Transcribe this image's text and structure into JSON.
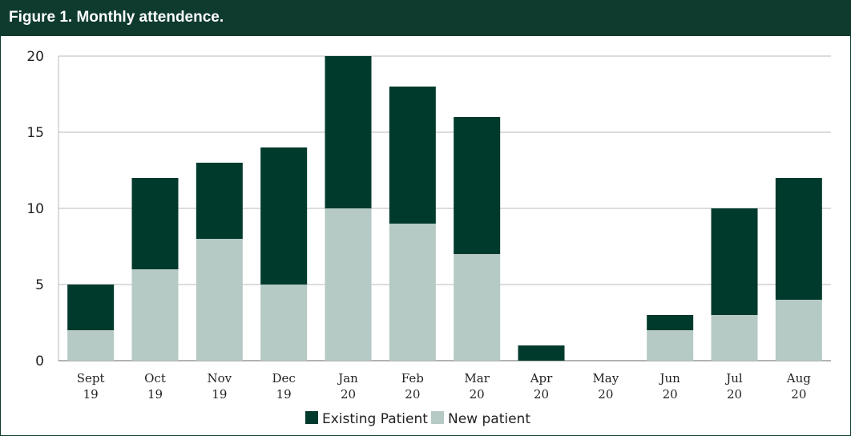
{
  "figure": {
    "title": "Figure 1. Monthly attendence."
  },
  "colors": {
    "existing": "#003a2c",
    "new": "#b5c9c5",
    "grid": "#b9b9b9",
    "header": "#0f3b2f"
  },
  "chart_data": {
    "type": "bar",
    "stacked": true,
    "title": "Figure 1. Monthly attendence.",
    "categories": [
      [
        "Sept",
        "19"
      ],
      [
        "Oct",
        "19"
      ],
      [
        "Nov",
        "19"
      ],
      [
        "Dec",
        "19"
      ],
      [
        "Jan",
        "20"
      ],
      [
        "Feb",
        "20"
      ],
      [
        "Mar",
        "20"
      ],
      [
        "Apr",
        "20"
      ],
      [
        "May",
        "20"
      ],
      [
        "Jun",
        "20"
      ],
      [
        "Jul",
        "20"
      ],
      [
        "Aug",
        "20"
      ]
    ],
    "series": [
      {
        "name": "New patient",
        "values": [
          2,
          6,
          8,
          5,
          10,
          9,
          7,
          0,
          0,
          2,
          3,
          4
        ]
      },
      {
        "name": "Existing Patient",
        "values": [
          3,
          6,
          5,
          9,
          10,
          9,
          9,
          1,
          0,
          1,
          7,
          8
        ]
      }
    ],
    "ylim": [
      0,
      20
    ],
    "yticks": [
      0,
      5,
      10,
      15,
      20
    ],
    "grid": true,
    "legend": {
      "placement": "bottom",
      "entries": [
        "Existing Patient",
        "New patient"
      ]
    }
  }
}
